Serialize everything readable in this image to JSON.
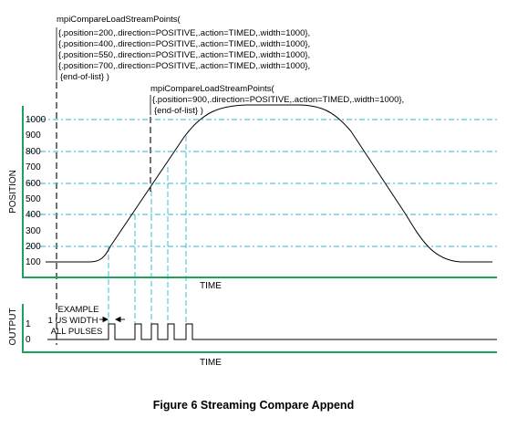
{
  "commands": [
    {
      "title": "mpiCompareLoadStreamPoints(",
      "lines": [
        "{.position=200,.direction=POSITIVE,.action=TIMED,.width=1000},",
        "{.position=400,.direction=POSITIVE,.action=TIMED,.width=1000},",
        "{.position=550,.direction=POSITIVE,.action=TIMED,.width=1000},",
        "{.position=700,.direction=POSITIVE,.action=TIMED,.width=1000},",
        "{end-of-list} )"
      ]
    },
    {
      "title": "mpiCompareLoadStreamPoints(",
      "lines": [
        "{.position=900,.direction=POSITIVE,.action=TIMED,.width=1000},",
        "{end-of-list} )"
      ]
    }
  ],
  "position_chart": {
    "ylabel": "POSITION",
    "xlabel": "TIME",
    "ticks": [
      "1000",
      "900",
      "800",
      "700",
      "600",
      "500",
      "400",
      "300",
      "200",
      "100"
    ]
  },
  "output_chart": {
    "ylabel": "OUTPUT",
    "xlabel": "TIME",
    "ticks": [
      "1",
      "0"
    ]
  },
  "annotation": {
    "lines": [
      "EXAMPLE",
      "1 US WIDTH",
      "ALL PULSES"
    ]
  },
  "caption": "Figure 6 Streaming Compare Append",
  "colors": {
    "axis": "#1aa35a",
    "guide": "#2bb5d5",
    "curve": "#000000"
  }
}
